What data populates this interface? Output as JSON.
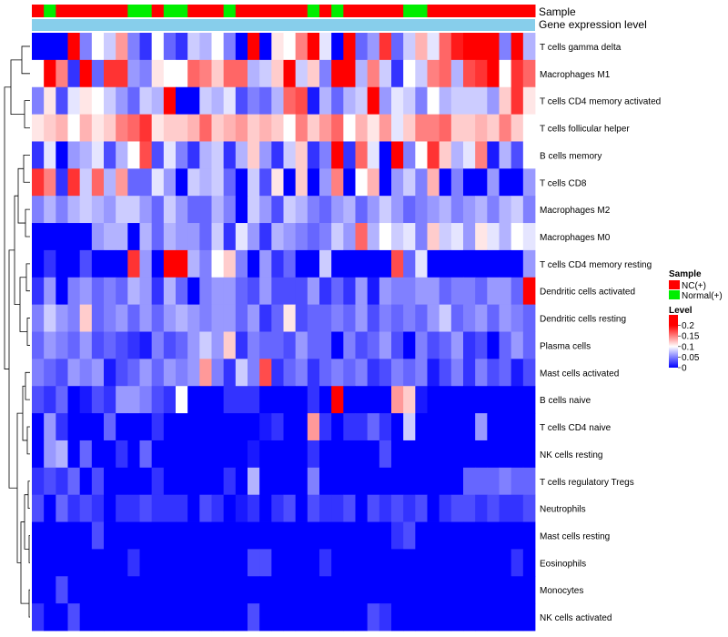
{
  "chart_data": {
    "type": "heatmap",
    "title": "",
    "annotation_labels": [
      "Sample",
      "Gene expression level"
    ],
    "sample_groups": [
      "NC",
      "Normal",
      "NC",
      "NC",
      "NC",
      "NC",
      "NC",
      "NC",
      "Normal",
      "Normal",
      "NC",
      "Normal",
      "Normal",
      "NC",
      "NC",
      "NC",
      "Normal",
      "NC",
      "NC",
      "NC",
      "NC",
      "NC",
      "NC",
      "Normal",
      "NC",
      "Normal",
      "NC",
      "NC",
      "NC",
      "NC",
      "NC",
      "Normal",
      "Normal",
      "NC",
      "NC",
      "NC",
      "NC",
      "NC",
      "NC",
      "NC",
      "NC",
      "NC"
    ],
    "rows": [
      "T cells gamma delta",
      "Macrophages M1",
      "T cells CD4 memory activated",
      "T cells follicular helper",
      "B cells memory",
      "T cells CD8",
      "Macrophages M2",
      "Macrophages M0",
      "T cells CD4 memory resting",
      "Dendritic cells activated",
      "Dendritic cells resting",
      "Plasma cells",
      "Mast cells activated",
      "B cells naive",
      "T cells CD4 naive",
      "NK cells resting",
      "T cells regulatory  Tregs",
      "Neutrophils",
      "Mast cells resting",
      "Eosinophils",
      "Monocytes",
      "NK cells activated"
    ],
    "values": [
      [
        0.0,
        0.0,
        0.0,
        0.2,
        0.05,
        0.1,
        0.08,
        0.14,
        0.05,
        0.02,
        0.1,
        0.04,
        0.02,
        0.08,
        0.07,
        0.1,
        0.05,
        0.0,
        0.2,
        0.0,
        0.11,
        0.1,
        0.15,
        0.2,
        0.09,
        0.0,
        0.2,
        0.04,
        0.06,
        0.18,
        0.04,
        0.08,
        0.13,
        0.09,
        0.16,
        0.19,
        0.24,
        0.22,
        0.24,
        0.05,
        0.2,
        0.07
      ],
      [
        0.1,
        0.24,
        0.15,
        0.02,
        0.22,
        0.04,
        0.18,
        0.18,
        0.06,
        0.05,
        0.11,
        0.1,
        0.1,
        0.16,
        0.15,
        0.12,
        0.16,
        0.16,
        0.07,
        0.08,
        0.12,
        0.2,
        0.08,
        0.12,
        0.05,
        0.2,
        0.2,
        0.07,
        0.15,
        0.08,
        0.02,
        0.1,
        0.08,
        0.15,
        0.16,
        0.07,
        0.17,
        0.18,
        0.2,
        0.1,
        0.18,
        0.16
      ],
      [
        0.05,
        0.11,
        0.03,
        0.09,
        0.11,
        0.1,
        0.08,
        0.06,
        0.04,
        0.08,
        0.07,
        0.24,
        0.0,
        0.0,
        0.08,
        0.07,
        0.09,
        0.03,
        0.05,
        0.04,
        0.07,
        0.16,
        0.17,
        0.01,
        0.07,
        0.04,
        0.07,
        0.08,
        0.24,
        0.06,
        0.09,
        0.08,
        0.05,
        0.1,
        0.07,
        0.08,
        0.08,
        0.08,
        0.06,
        0.12,
        0.18,
        0.11
      ],
      [
        0.11,
        0.12,
        0.13,
        0.1,
        0.13,
        0.11,
        0.12,
        0.15,
        0.16,
        0.18,
        0.11,
        0.12,
        0.12,
        0.13,
        0.16,
        0.12,
        0.13,
        0.14,
        0.12,
        0.13,
        0.12,
        0.1,
        0.15,
        0.12,
        0.14,
        0.16,
        0.1,
        0.13,
        0.11,
        0.14,
        0.09,
        0.12,
        0.15,
        0.15,
        0.16,
        0.12,
        0.12,
        0.13,
        0.12,
        0.15,
        0.12,
        0.1
      ],
      [
        0.02,
        0.09,
        0.0,
        0.06,
        0.07,
        0.09,
        0.03,
        0.07,
        0.1,
        0.17,
        0.03,
        0.09,
        0.05,
        0.02,
        0.07,
        0.08,
        0.02,
        0.07,
        0.12,
        0.06,
        0.02,
        0.08,
        0.12,
        0.02,
        0.05,
        0.24,
        0.02,
        0.16,
        0.09,
        0.0,
        0.2,
        0.05,
        0.1,
        0.18,
        0.12,
        0.07,
        0.09,
        0.15,
        0.01,
        0.07,
        0.03,
        0.1
      ],
      [
        0.18,
        0.15,
        0.02,
        0.18,
        0.08,
        0.16,
        0.07,
        0.14,
        0.04,
        0.04,
        0.09,
        0.06,
        0.0,
        0.08,
        0.07,
        0.08,
        0.04,
        0.0,
        0.08,
        0.03,
        0.11,
        0.0,
        0.12,
        0.0,
        0.06,
        0.15,
        0.0,
        0.1,
        0.13,
        0.0,
        0.06,
        0.08,
        0.05,
        0.13,
        0.0,
        0.05,
        0.0,
        0.0,
        0.06,
        0.0,
        0.0,
        0.06
      ],
      [
        0.05,
        0.07,
        0.05,
        0.07,
        0.08,
        0.07,
        0.06,
        0.08,
        0.08,
        0.06,
        0.04,
        0.08,
        0.06,
        0.04,
        0.04,
        0.07,
        0.05,
        0.0,
        0.08,
        0.06,
        0.03,
        0.08,
        0.07,
        0.05,
        0.04,
        0.06,
        0.07,
        0.04,
        0.06,
        0.08,
        0.06,
        0.04,
        0.05,
        0.06,
        0.07,
        0.05,
        0.06,
        0.07,
        0.05,
        0.07,
        0.08,
        0.05
      ],
      [
        0.0,
        0.0,
        0.0,
        0.0,
        0.0,
        0.06,
        0.07,
        0.07,
        0.0,
        0.07,
        0.04,
        0.07,
        0.06,
        0.06,
        0.04,
        0.08,
        0.02,
        0.09,
        0.06,
        0.02,
        0.07,
        0.06,
        0.05,
        0.04,
        0.05,
        0.08,
        0.06,
        0.16,
        0.07,
        0.1,
        0.08,
        0.09,
        0.05,
        0.12,
        0.08,
        0.09,
        0.06,
        0.11,
        0.09,
        0.07,
        0.1,
        0.09
      ],
      [
        0.0,
        0.02,
        0.0,
        0.0,
        0.03,
        0.0,
        0.0,
        0.0,
        0.18,
        0.06,
        0.0,
        0.2,
        0.2,
        0.07,
        0.05,
        0.1,
        0.12,
        0.05,
        0.0,
        0.06,
        0.02,
        0.04,
        0.0,
        0.0,
        0.08,
        0.0,
        0.0,
        0.0,
        0.0,
        0.0,
        0.17,
        0.04,
        0.09,
        0.0,
        0.0,
        0.0,
        0.0,
        0.0,
        0.0,
        0.0,
        0.0,
        0.06
      ],
      [
        0.02,
        0.06,
        0.0,
        0.05,
        0.06,
        0.04,
        0.05,
        0.04,
        0.07,
        0.06,
        0.02,
        0.07,
        0.04,
        0.0,
        0.05,
        0.06,
        0.06,
        0.04,
        0.03,
        0.06,
        0.03,
        0.03,
        0.03,
        0.06,
        0.02,
        0.04,
        0.02,
        0.06,
        0.01,
        0.06,
        0.05,
        0.05,
        0.06,
        0.06,
        0.04,
        0.05,
        0.05,
        0.04,
        0.06,
        0.06,
        0.04,
        0.22
      ],
      [
        0.05,
        0.08,
        0.06,
        0.05,
        0.12,
        0.04,
        0.05,
        0.06,
        0.04,
        0.06,
        0.04,
        0.06,
        0.07,
        0.06,
        0.05,
        0.06,
        0.06,
        0.04,
        0.06,
        0.02,
        0.04,
        0.11,
        0.03,
        0.04,
        0.04,
        0.05,
        0.04,
        0.06,
        0.03,
        0.05,
        0.04,
        0.05,
        0.04,
        0.06,
        0.08,
        0.04,
        0.05,
        0.06,
        0.04,
        0.06,
        0.05,
        0.04
      ],
      [
        0.04,
        0.06,
        0.05,
        0.04,
        0.06,
        0.03,
        0.04,
        0.03,
        0.02,
        0.01,
        0.05,
        0.03,
        0.04,
        0.06,
        0.08,
        0.06,
        0.12,
        0.02,
        0.05,
        0.04,
        0.04,
        0.03,
        0.06,
        0.04,
        0.04,
        0.0,
        0.05,
        0.03,
        0.04,
        0.06,
        0.03,
        0.0,
        0.05,
        0.03,
        0.04,
        0.06,
        0.02,
        0.03,
        0.0,
        0.04,
        0.06,
        0.04
      ],
      [
        0.05,
        0.04,
        0.03,
        0.06,
        0.05,
        0.06,
        0.01,
        0.03,
        0.04,
        0.06,
        0.04,
        0.06,
        0.05,
        0.06,
        0.14,
        0.05,
        0.02,
        0.08,
        0.05,
        0.17,
        0.02,
        0.04,
        0.05,
        0.02,
        0.04,
        0.05,
        0.04,
        0.05,
        0.02,
        0.03,
        0.05,
        0.04,
        0.05,
        0.01,
        0.03,
        0.05,
        0.02,
        0.05,
        0.03,
        0.04,
        0.01,
        0.03
      ],
      [
        0.03,
        0.02,
        0.04,
        0.0,
        0.01,
        0.03,
        0.02,
        0.06,
        0.06,
        0.05,
        0.03,
        0.02,
        0.1,
        0.0,
        0.0,
        0.0,
        0.02,
        0.02,
        0.02,
        0.0,
        0.0,
        0.0,
        0.0,
        0.02,
        0.0,
        0.24,
        0.0,
        0.0,
        0.0,
        0.0,
        0.14,
        0.12,
        0.01,
        0.0,
        0.0,
        0.0,
        0.0,
        0.0,
        0.0,
        0.0,
        0.0,
        0.0
      ],
      [
        0.0,
        0.06,
        0.02,
        0.0,
        0.0,
        0.0,
        0.04,
        0.0,
        0.0,
        0.0,
        0.02,
        0.0,
        0.0,
        0.0,
        0.0,
        0.0,
        0.0,
        0.0,
        0.0,
        0.01,
        0.02,
        0.0,
        0.0,
        0.14,
        0.02,
        0.0,
        0.02,
        0.02,
        0.04,
        0.02,
        0.0,
        0.08,
        0.0,
        0.0,
        0.0,
        0.0,
        0.0,
        0.06,
        0.0,
        0.0,
        0.0,
        0.0
      ],
      [
        0.0,
        0.06,
        0.07,
        0.0,
        0.04,
        0.0,
        0.0,
        0.02,
        0.0,
        0.04,
        0.0,
        0.0,
        0.0,
        0.0,
        0.0,
        0.0,
        0.0,
        0.0,
        0.01,
        0.0,
        0.0,
        0.0,
        0.0,
        0.02,
        0.0,
        0.0,
        0.0,
        0.0,
        0.0,
        0.03,
        0.0,
        0.0,
        0.0,
        0.0,
        0.0,
        0.0,
        0.0,
        0.0,
        0.0,
        0.0,
        0.0,
        0.0
      ],
      [
        0.02,
        0.03,
        0.02,
        0.04,
        0.0,
        0.03,
        0.0,
        0.0,
        0.0,
        0.0,
        0.02,
        0.0,
        0.0,
        0.0,
        0.0,
        0.0,
        0.02,
        0.0,
        0.07,
        0.0,
        0.0,
        0.0,
        0.0,
        0.05,
        0.0,
        0.0,
        0.0,
        0.0,
        0.0,
        0.0,
        0.0,
        0.0,
        0.0,
        0.0,
        0.0,
        0.0,
        0.04,
        0.04,
        0.04,
        0.05,
        0.04,
        0.04
      ],
      [
        0.03,
        0.0,
        0.04,
        0.02,
        0.03,
        0.02,
        0.0,
        0.02,
        0.02,
        0.03,
        0.02,
        0.02,
        0.02,
        0.0,
        0.03,
        0.02,
        0.0,
        0.01,
        0.02,
        0.0,
        0.02,
        0.03,
        0.0,
        0.03,
        0.02,
        0.02,
        0.03,
        0.0,
        0.03,
        0.02,
        0.03,
        0.02,
        0.03,
        0.0,
        0.02,
        0.03,
        0.03,
        0.02,
        0.03,
        0.02,
        0.02,
        0.03
      ],
      [
        0.0,
        0.0,
        0.0,
        0.0,
        0.0,
        0.03,
        0.0,
        0.0,
        0.0,
        0.0,
        0.0,
        0.0,
        0.0,
        0.0,
        0.0,
        0.0,
        0.0,
        0.0,
        0.0,
        0.0,
        0.0,
        0.0,
        0.0,
        0.0,
        0.0,
        0.0,
        0.0,
        0.0,
        0.0,
        0.0,
        0.02,
        0.03,
        0.0,
        0.0,
        0.0,
        0.0,
        0.0,
        0.0,
        0.0,
        0.0,
        0.0,
        0.0
      ],
      [
        0.0,
        0.0,
        0.0,
        0.0,
        0.0,
        0.0,
        0.0,
        0.0,
        0.02,
        0.0,
        0.0,
        0.0,
        0.0,
        0.0,
        0.0,
        0.0,
        0.0,
        0.0,
        0.03,
        0.03,
        0.0,
        0.0,
        0.0,
        0.0,
        0.02,
        0.0,
        0.0,
        0.0,
        0.0,
        0.0,
        0.0,
        0.0,
        0.0,
        0.0,
        0.0,
        0.0,
        0.0,
        0.0,
        0.0,
        0.0,
        0.02,
        0.0
      ],
      [
        0.0,
        0.0,
        0.03,
        0.0,
        0.0,
        0.0,
        0.0,
        0.0,
        0.0,
        0.0,
        0.0,
        0.0,
        0.0,
        0.0,
        0.0,
        0.0,
        0.0,
        0.0,
        0.0,
        0.0,
        0.0,
        0.0,
        0.0,
        0.0,
        0.0,
        0.0,
        0.0,
        0.0,
        0.0,
        0.0,
        0.0,
        0.0,
        0.0,
        0.0,
        0.0,
        0.0,
        0.0,
        0.0,
        0.0,
        0.0,
        0.0,
        0.0
      ],
      [
        0.02,
        0.0,
        0.0,
        0.03,
        0.0,
        0.0,
        0.0,
        0.0,
        0.0,
        0.0,
        0.0,
        0.0,
        0.0,
        0.0,
        0.0,
        0.0,
        0.0,
        0.0,
        0.03,
        0.0,
        0.0,
        0.0,
        0.0,
        0.0,
        0.0,
        0.0,
        0.0,
        0.0,
        0.03,
        0.02,
        0.0,
        0.0,
        0.0,
        0.0,
        0.0,
        0.0,
        0.0,
        0.0,
        0.0,
        0.0,
        0.0,
        0.0
      ]
    ],
    "legend": {
      "sample_title": "Sample",
      "sample_entries": [
        {
          "label": "NC(+)",
          "color": "#ff0000"
        },
        {
          "label": "Normal(+)",
          "color": "#00ee00"
        }
      ],
      "level_title": "Level",
      "level_ticks": [
        "0.2",
        "0.15",
        "0.1",
        "0.05",
        "0"
      ],
      "placement": "right"
    },
    "colors": {
      "low": "#0000ff",
      "mid": "#ffffff",
      "high": "#ff0000",
      "expression_bar": "#87ceeb"
    },
    "value_range": [
      0,
      0.25
    ]
  }
}
